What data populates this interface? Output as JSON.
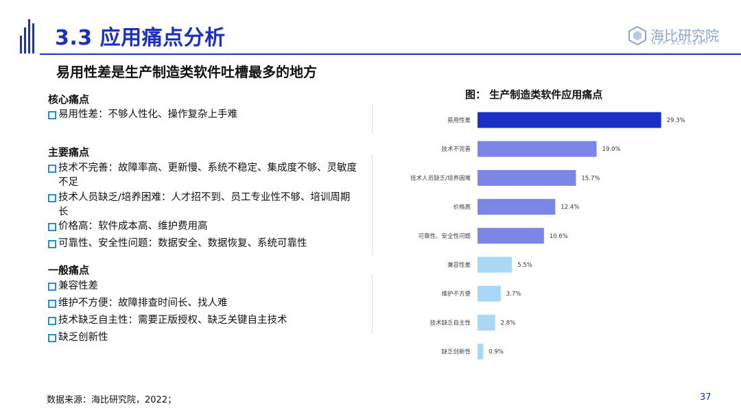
{
  "header": {
    "title": "3.3 应用痛点分析",
    "logo_name": "海比研究院",
    "logo_sub": "HAP ACADEMY"
  },
  "subtitle": "易用性差是生产制造类软件吐槽最多的地方",
  "sections": [
    {
      "heading": "核心痛点",
      "items": [
        "易用性差：不够人性化、操作复杂上手难"
      ]
    },
    {
      "heading": "主要痛点",
      "items": [
        "技术不完善：故障率高、更新慢、系统不稳定、集成度不够、灵敏度不足",
        "技术人员缺乏/培养困难：人才招不到、员工专业性不够、培训周期长",
        "价格高：软件成本高、维护费用高",
        "可靠性、安全性问题：数据安全、数据恢复、系统可靠性"
      ]
    },
    {
      "heading": "一般痛点",
      "items": [
        "兼容性差",
        "维护不方便：故障排查时间长、找人难",
        "技术缺乏自主性：需要正版授权、缺乏关键自主技术",
        "缺乏创新性"
      ]
    }
  ],
  "chart_title": "图：  生产制造类软件应用痛点",
  "chart_data": {
    "type": "bar",
    "orientation": "horizontal",
    "title": "图：  生产制造类软件应用痛点",
    "categories": [
      "易用性差",
      "技术不完善",
      "技术人员缺乏/培养困难",
      "价格高",
      "可靠性、安全性问题",
      "兼容性差",
      "维护不方便",
      "技术缺乏自主性",
      "缺乏创新性"
    ],
    "values": [
      29.3,
      19.0,
      15.7,
      12.4,
      10.6,
      5.5,
      3.7,
      2.8,
      0.9
    ],
    "value_labels": [
      "29.3%",
      "19.0%",
      "15.7%",
      "12.4%",
      "10.6%",
      "5.5%",
      "3.7%",
      "2.8%",
      "0.9%"
    ],
    "bar_colors": [
      "#1a2fc8",
      "#7b86e6",
      "#7b86e6",
      "#7b86e6",
      "#7b86e6",
      "#a9d8f7",
      "#a9d8f7",
      "#a9d8f7",
      "#a9d8f7"
    ],
    "xlim": [
      0,
      30
    ],
    "grid": false,
    "legend": "none"
  },
  "footer": {
    "source": "数据来源：海比研究院，2022；",
    "page": "37"
  },
  "colors": {
    "accent": "#1a2fc8",
    "bullet": "#1f8fd8",
    "logo": "#8aa2d6"
  }
}
